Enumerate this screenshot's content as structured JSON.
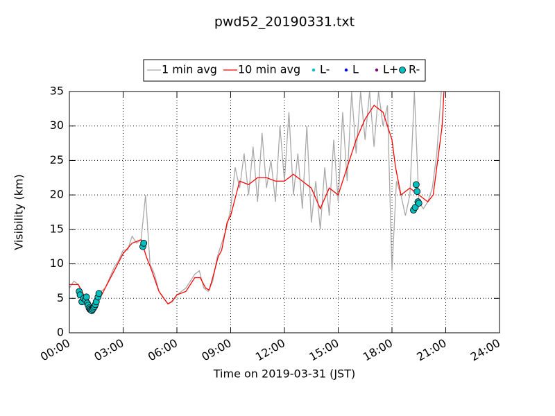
{
  "chart_data": {
    "type": "line",
    "title": "pwd52_20190331.txt",
    "xlabel": "Time on 2019-03-31 (JST)",
    "ylabel": "Visibility (km)",
    "xlim": [
      0,
      24
    ],
    "ylim": [
      0,
      35
    ],
    "xticks": [
      {
        "value": 0,
        "label": "00:00"
      },
      {
        "value": 3,
        "label": "03:00"
      },
      {
        "value": 6,
        "label": "06:00"
      },
      {
        "value": 9,
        "label": "09:00"
      },
      {
        "value": 12,
        "label": "12:00"
      },
      {
        "value": 15,
        "label": "15:00"
      },
      {
        "value": 18,
        "label": "18:00"
      },
      {
        "value": 21,
        "label": "21:00"
      },
      {
        "value": 24,
        "label": "24:00"
      }
    ],
    "yticks": [
      0,
      5,
      10,
      15,
      20,
      25,
      30,
      35
    ],
    "grid": true,
    "legend": "top",
    "series": [
      {
        "name": "1 min avg",
        "mode": "line",
        "color": "#a8a8a8",
        "x": [
          0,
          0.25,
          0.5,
          0.75,
          1,
          1.25,
          1.5,
          1.75,
          2,
          2.25,
          2.5,
          2.75,
          3,
          3.25,
          3.5,
          3.75,
          4,
          4.25,
          4.5,
          4.75,
          5,
          5.25,
          5.5,
          5.75,
          6,
          6.25,
          6.5,
          6.75,
          7,
          7.25,
          7.5,
          7.75,
          8,
          8.25,
          8.5,
          8.75,
          9,
          9.25,
          9.5,
          9.75,
          10,
          10.25,
          10.5,
          10.75,
          11,
          11.25,
          11.5,
          11.75,
          12,
          12.25,
          12.5,
          12.75,
          13,
          13.25,
          13.5,
          13.75,
          14,
          14.25,
          14.5,
          14.75,
          15,
          15.25,
          15.5,
          15.75,
          16,
          16.25,
          16.5,
          16.75,
          17,
          17.25,
          17.5,
          17.75,
          18,
          18.25,
          18.5,
          18.75,
          19,
          19.25,
          19.5,
          19.75,
          20,
          20.25,
          20.5,
          20.75
        ],
        "values": [
          6.5,
          7.5,
          7,
          5.5,
          5,
          3.5,
          4,
          6,
          6.5,
          8,
          9.5,
          10.5,
          12,
          12,
          14,
          13,
          13.5,
          20,
          10,
          8.5,
          6,
          5,
          4.2,
          4.5,
          5.5,
          6,
          6.5,
          7.5,
          8.5,
          9,
          6.5,
          6,
          7.5,
          11,
          13,
          15,
          18,
          24,
          21,
          26,
          20,
          27,
          19,
          29,
          21,
          25,
          19,
          30,
          22,
          32,
          20,
          26,
          18,
          30,
          16,
          22,
          15,
          24,
          17,
          28,
          19,
          32,
          22,
          35,
          26,
          35,
          28,
          35,
          27,
          35,
          30,
          33,
          9,
          22,
          20,
          17,
          20,
          35,
          19,
          18,
          19,
          21,
          26,
          35
        ]
      },
      {
        "name": "10 min avg",
        "mode": "line",
        "color": "#ff0000",
        "x": [
          0,
          0.5,
          0.7,
          1.0,
          1.3,
          1.5,
          1.8,
          2.0,
          2.5,
          3.0,
          3.5,
          4.0,
          4.3,
          4.6,
          5.0,
          5.5,
          5.7,
          6.0,
          6.5,
          7.0,
          7.3,
          7.6,
          7.8,
          8.0,
          8.3,
          8.5,
          8.8,
          9.0,
          9.3,
          9.5,
          10.0,
          10.5,
          11.0,
          11.5,
          12.0,
          12.5,
          13.0,
          13.5,
          14.0,
          14.5,
          15.0,
          15.5,
          16.0,
          16.5,
          17.0,
          17.5,
          18.0,
          18.2,
          18.5,
          19.0,
          19.5,
          20.0,
          20.3,
          20.5,
          20.8,
          20.9
        ],
        "values": [
          7,
          7,
          6,
          4.5,
          3.5,
          4,
          5.5,
          6.5,
          9,
          11.5,
          13,
          13.5,
          11,
          9,
          6,
          4.2,
          4.5,
          5.5,
          6,
          8,
          8,
          6.5,
          6.2,
          8,
          11,
          12,
          16,
          17,
          20,
          22,
          21.5,
          22.5,
          22.5,
          22,
          22,
          23,
          22,
          21,
          18,
          21,
          20,
          24,
          28,
          31,
          33,
          32,
          28,
          24,
          20,
          21,
          20,
          19,
          20,
          24,
          30,
          35
        ]
      },
      {
        "name": "L-",
        "mode": "points",
        "color": "#00bfbf",
        "x": [],
        "values": []
      },
      {
        "name": "L",
        "mode": "points",
        "color": "#0000ff",
        "x": [],
        "values": []
      },
      {
        "name": "L+",
        "mode": "points",
        "color": "#800080",
        "x": [],
        "values": []
      },
      {
        "name": "R-",
        "mode": "points",
        "color": "#00bfbf",
        "x": [
          0.55,
          0.6,
          0.7,
          0.8,
          0.9,
          0.95,
          1.0,
          1.05,
          1.1,
          1.15,
          1.2,
          1.25,
          1.3,
          1.35,
          1.4,
          1.45,
          1.5,
          1.6,
          1.65,
          4.1,
          4.15,
          19.2,
          19.3,
          19.35,
          19.4,
          19.45,
          19.5
        ],
        "values": [
          6,
          5.5,
          4.5,
          5,
          4.8,
          5.2,
          4.3,
          4,
          3.6,
          3.4,
          3.3,
          3.2,
          3.4,
          3.6,
          3.8,
          4.1,
          4.5,
          5.2,
          5.7,
          12.5,
          13,
          17.8,
          18.2,
          21.5,
          20.5,
          19,
          18.8
        ]
      }
    ]
  }
}
